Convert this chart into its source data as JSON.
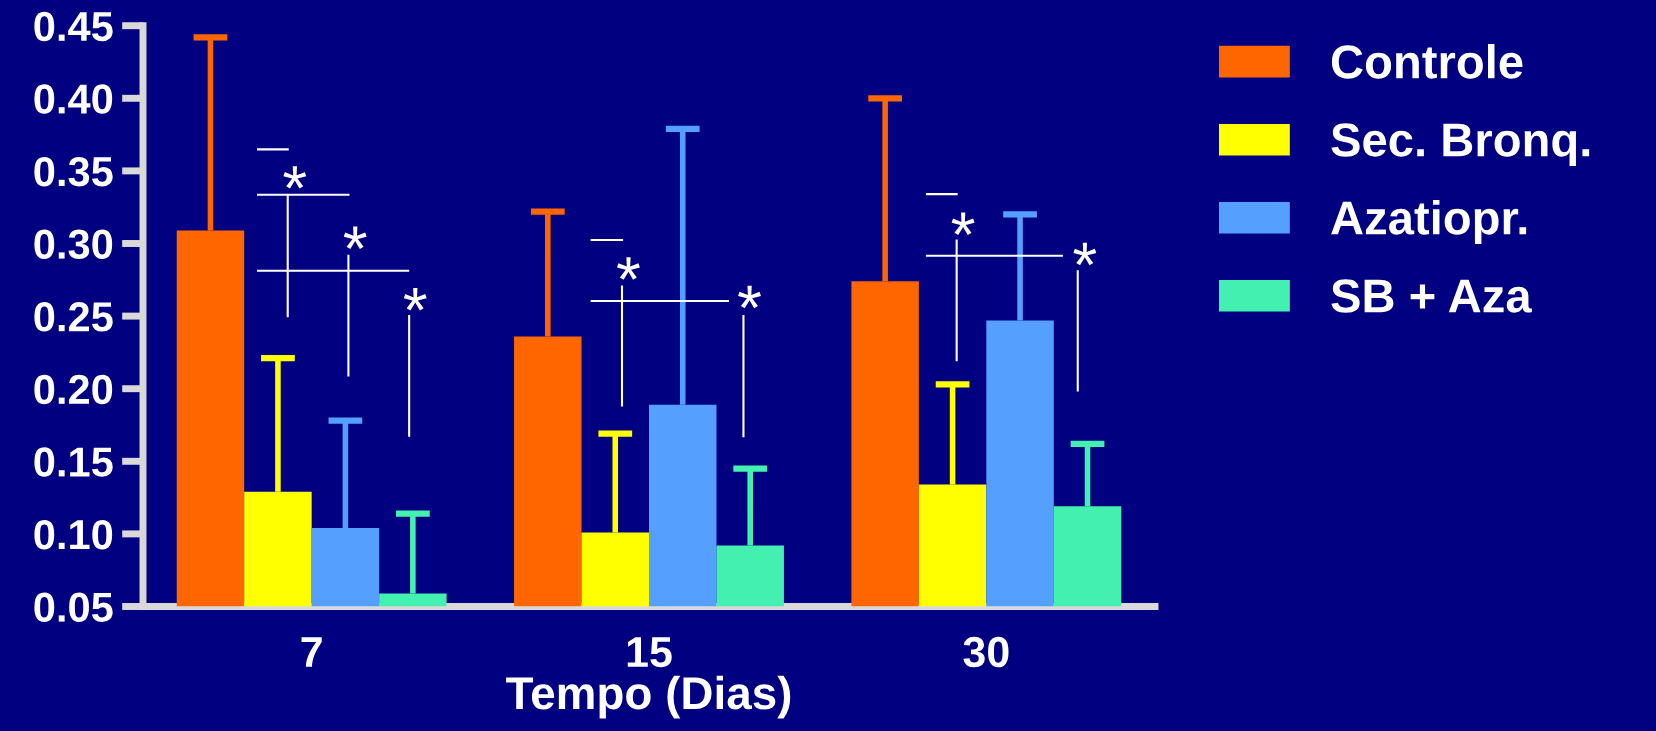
{
  "chart_data": {
    "type": "bar",
    "categories": [
      "7",
      "15",
      "30"
    ],
    "xlabel": "Tempo (Dias)",
    "series": [
      {
        "name": "Controle",
        "color": "#ff6600",
        "values": [
          0.309,
          0.236,
          0.274
        ],
        "errors": [
          [
            0.309,
            0.442
          ],
          [
            0.236,
            0.322
          ],
          [
            0.274,
            0.4
          ]
        ]
      },
      {
        "name": "Sec. Bronq.",
        "color": "#ffff00",
        "values": [
          0.129,
          0.101,
          0.134
        ],
        "errors": [
          [
            0.129,
            0.221
          ],
          [
            0.101,
            0.169
          ],
          [
            0.134,
            0.203
          ]
        ]
      },
      {
        "name": "Azatiopr.",
        "color": "#55a0ff",
        "values": [
          0.104,
          0.189,
          0.247
        ],
        "errors": [
          [
            0.104,
            0.178
          ],
          [
            0.189,
            0.379
          ],
          [
            0.247,
            0.32
          ]
        ]
      },
      {
        "name": "SB + Aza",
        "color": "#44f0b0",
        "values": [
          0.059,
          0.092,
          0.119
        ],
        "errors": [
          [
            0.059,
            0.114
          ],
          [
            0.092,
            0.145
          ],
          [
            0.119,
            0.162
          ]
        ]
      }
    ],
    "ylim": [
      0.05,
      0.45
    ],
    "yticks": [
      0.05,
      {
        "value": 0.1,
        "label": "0.10"
      },
      0.15,
      {
        "value": 0.2,
        "label": "0.20"
      },
      0.25,
      {
        "value": 0.3,
        "label": "0.30"
      },
      0.35,
      {
        "value": 0.4,
        "label": "0.40"
      },
      0.45
    ],
    "annotations": [
      "*",
      "*",
      "*",
      "*",
      "*",
      "*",
      "*"
    ],
    "legend": "top right"
  }
}
